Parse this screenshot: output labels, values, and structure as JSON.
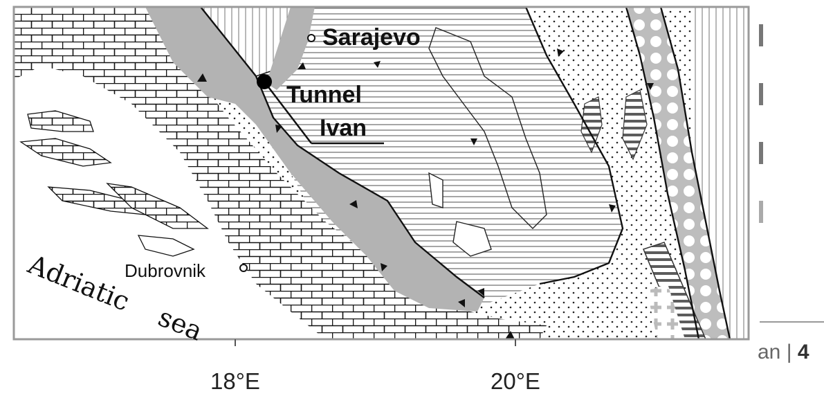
{
  "map": {
    "labels": {
      "city_sarajevo": "Sarajevo",
      "tunnel_line1": "Tunnel",
      "tunnel_line2": "Ivan",
      "city_dubrovnik": "Dubrovnik",
      "sea_word1": "Adriatic",
      "sea_word2": "sea"
    },
    "axis": {
      "tick_labels": [
        "18°E",
        "20°E"
      ]
    }
  },
  "page_fragment": {
    "footer_text_partial": "an | ",
    "page_number_partial": "4"
  },
  "colors": {
    "frame": "#9a9a9a",
    "fault": "#111111",
    "gray_zone": "#b3b3b3",
    "dark_stripes": "#5c5c5c",
    "circles_zone": "#bdbdbd"
  }
}
